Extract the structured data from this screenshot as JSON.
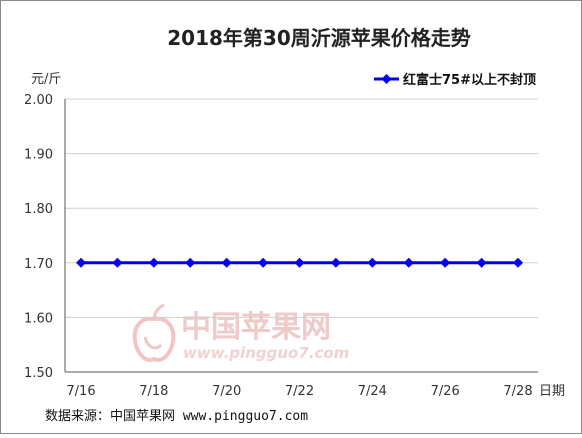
{
  "chart_data": {
    "type": "line",
    "title": "2018年第30周沂源苹果价格走势",
    "ylabel": "元/斤",
    "xlabel": "日期",
    "ylim": [
      1.5,
      2.0
    ],
    "yticks": [
      "1.50",
      "1.60",
      "1.70",
      "1.80",
      "1.90",
      "2.00"
    ],
    "x": [
      "7/16",
      "7/17",
      "7/18",
      "7/19",
      "7/20",
      "7/21",
      "7/22",
      "7/23",
      "7/24",
      "7/25",
      "7/26",
      "7/27",
      "7/28"
    ],
    "xtick_labels": [
      "7/16",
      "7/18",
      "7/20",
      "7/22",
      "7/24",
      "7/26",
      "7/28"
    ],
    "series": [
      {
        "name": "红富士75#以上不封顶",
        "color": "#0000ee",
        "values": [
          1.7,
          1.7,
          1.7,
          1.7,
          1.7,
          1.7,
          1.7,
          1.7,
          1.7,
          1.7,
          1.7,
          1.7,
          1.7
        ]
      }
    ],
    "grid": true,
    "legend_position": "top-right"
  },
  "watermark": {
    "name": "中国苹果网",
    "url": "www.pingguo7.com",
    "logo_icon": "apple-logo-icon"
  },
  "source": "数据来源：中国苹果网 www.pingguo7.com"
}
